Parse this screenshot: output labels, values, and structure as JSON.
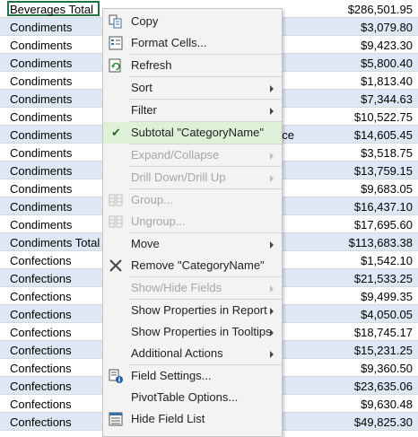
{
  "rows": [
    {
      "a": "Beverages Total",
      "mid": "",
      "b": "$286,501.95",
      "alt": false,
      "selected": true
    },
    {
      "a": "Condiments",
      "mid": "",
      "b": "$3,079.80",
      "alt": true
    },
    {
      "a": "Condiments",
      "mid": "",
      "b": "$9,423.30",
      "alt": false
    },
    {
      "a": "Condiments",
      "mid": "",
      "b": "$5,800.40",
      "alt": true
    },
    {
      "a": "Condiments",
      "mid": "",
      "b": "$1,813.40",
      "alt": false
    },
    {
      "a": "Condiments",
      "mid": "d",
      "b": "$7,344.63",
      "alt": true
    },
    {
      "a": "Condiments",
      "mid": "",
      "b": "$10,522.75",
      "alt": false
    },
    {
      "a": "Condiments",
      "mid": "nce",
      "b": "$14,605.45",
      "alt": true
    },
    {
      "a": "Condiments",
      "mid": "",
      "b": "$3,518.75",
      "alt": false
    },
    {
      "a": "Condiments",
      "mid": "",
      "b": "$13,759.15",
      "alt": true
    },
    {
      "a": "Condiments",
      "mid": "e",
      "b": "$9,683.05",
      "alt": false
    },
    {
      "a": "Condiments",
      "mid": "",
      "b": "$16,437.10",
      "alt": true
    },
    {
      "a": "Condiments",
      "mid": "",
      "b": "$17,695.60",
      "alt": false
    },
    {
      "a": "Condiments Total",
      "mid": "",
      "b": "$113,683.38",
      "alt": true
    },
    {
      "a": "Confections",
      "mid": "",
      "b": "$1,542.10",
      "alt": false
    },
    {
      "a": "Confections",
      "mid": "",
      "b": "$21,533.25",
      "alt": true
    },
    {
      "a": "Confections",
      "mid": "",
      "b": "$9,499.35",
      "alt": false
    },
    {
      "a": "Confections",
      "mid": "",
      "b": "$4,050.05",
      "alt": true
    },
    {
      "a": "Confections",
      "mid": "",
      "b": "$18,745.17",
      "alt": false
    },
    {
      "a": "Confections",
      "mid": "",
      "b": "$15,231.25",
      "alt": true
    },
    {
      "a": "Confections",
      "mid": "",
      "b": "$9,360.50",
      "alt": false
    },
    {
      "a": "Confections",
      "mid": "",
      "b": "$23,635.06",
      "alt": true
    },
    {
      "a": "Confections",
      "mid": "",
      "b": "$9,630.48",
      "alt": false
    },
    {
      "a": "Confections",
      "mid": "",
      "b": "$49,825.30",
      "alt": true
    }
  ],
  "menu": [
    {
      "id": "copy",
      "label": "Copy",
      "icon": "copy-icon",
      "disabled": false,
      "submenu": false
    },
    {
      "id": "format-cells",
      "label": "Format Cells...",
      "icon": "format-cells-icon",
      "disabled": false,
      "submenu": false
    },
    {
      "sep": true
    },
    {
      "id": "refresh",
      "label": "Refresh",
      "icon": "refresh-icon",
      "disabled": false,
      "submenu": false
    },
    {
      "sep": true
    },
    {
      "id": "sort",
      "label": "Sort",
      "disabled": false,
      "submenu": true
    },
    {
      "sep": true
    },
    {
      "id": "filter",
      "label": "Filter",
      "disabled": false,
      "submenu": true
    },
    {
      "sep": true
    },
    {
      "id": "subtotal",
      "label": "Subtotal \"CategoryName\"",
      "disabled": false,
      "submenu": false,
      "checked": true
    },
    {
      "sep": true
    },
    {
      "id": "expand-collapse",
      "label": "Expand/Collapse",
      "disabled": true,
      "submenu": true
    },
    {
      "sep": true
    },
    {
      "id": "drill-down-up",
      "label": "Drill Down/Drill Up",
      "disabled": true,
      "submenu": true
    },
    {
      "sep": true
    },
    {
      "id": "group",
      "label": "Group...",
      "icon": "group-icon",
      "disabled": true,
      "submenu": false
    },
    {
      "id": "ungroup",
      "label": "Ungroup...",
      "icon": "ungroup-icon",
      "disabled": true,
      "submenu": false
    },
    {
      "sep": true
    },
    {
      "id": "move",
      "label": "Move",
      "disabled": false,
      "submenu": true
    },
    {
      "id": "remove",
      "label": "Remove \"CategoryName\"",
      "icon": "remove-icon",
      "disabled": false,
      "submenu": false
    },
    {
      "sep": true
    },
    {
      "id": "show-hide-fields",
      "label": "Show/Hide Fields",
      "disabled": true,
      "submenu": true
    },
    {
      "sep": true
    },
    {
      "id": "show-props-report",
      "label": "Show Properties in Report",
      "disabled": false,
      "submenu": true
    },
    {
      "id": "show-props-tooltips",
      "label": "Show Properties in Tooltips",
      "disabled": false,
      "submenu": true
    },
    {
      "id": "additional-actions",
      "label": "Additional Actions",
      "disabled": false,
      "submenu": true
    },
    {
      "sep": true
    },
    {
      "id": "field-settings",
      "label": "Field Settings...",
      "icon": "field-settings-icon",
      "disabled": false,
      "submenu": false
    },
    {
      "id": "pivottable-options",
      "label": "PivotTable Options...",
      "disabled": false,
      "submenu": false
    },
    {
      "id": "hide-field-list",
      "label": "Hide Field List",
      "icon": "field-list-icon",
      "disabled": false,
      "submenu": false
    }
  ],
  "colors": {
    "selection_border": "#217346",
    "row_alt": "#dde8f4",
    "menu_bg": "#f3f3f3",
    "checked_bg": "#dff0d8"
  }
}
